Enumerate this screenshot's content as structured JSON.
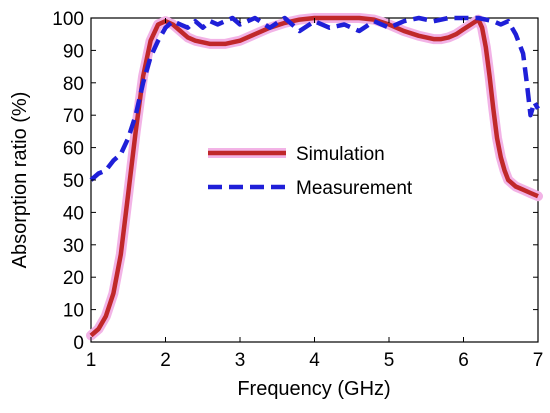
{
  "chart_data": {
    "type": "line",
    "xlabel": "Frequency (GHz)",
    "ylabel": "Absorption ratio (%)",
    "xlim": [
      1,
      7
    ],
    "ylim": [
      0,
      100
    ],
    "xticks": [
      1,
      2,
      3,
      4,
      5,
      6,
      7
    ],
    "yticks": [
      0,
      10,
      20,
      30,
      40,
      50,
      60,
      70,
      80,
      90,
      100
    ],
    "grid": false,
    "legend_position": "center",
    "series": [
      {
        "name": "Simulation",
        "color": "#c0282a",
        "line_style": "solid",
        "x": [
          1.0,
          1.1,
          1.2,
          1.3,
          1.4,
          1.5,
          1.6,
          1.7,
          1.8,
          1.9,
          2.0,
          2.1,
          2.2,
          2.3,
          2.4,
          2.5,
          2.6,
          2.7,
          2.8,
          2.9,
          3.0,
          3.2,
          3.4,
          3.6,
          3.8,
          4.0,
          4.2,
          4.4,
          4.6,
          4.8,
          5.0,
          5.2,
          5.4,
          5.6,
          5.7,
          5.8,
          5.9,
          6.0,
          6.1,
          6.2,
          6.25,
          6.3,
          6.35,
          6.4,
          6.45,
          6.5,
          6.55,
          6.6,
          6.7,
          6.8,
          6.9,
          7.0
        ],
        "y": [
          2,
          4,
          8,
          15,
          27,
          46,
          65,
          82,
          93,
          98,
          99,
          98,
          96,
          94,
          93,
          92.5,
          92,
          92,
          92,
          92.5,
          93,
          95,
          97,
          98.5,
          99.5,
          100,
          100,
          100,
          100,
          99.5,
          98,
          96,
          94.5,
          93.5,
          93.5,
          94,
          95,
          96.5,
          98,
          99.5,
          97,
          91,
          82,
          72,
          63,
          57,
          53,
          50,
          48,
          47,
          46,
          45
        ]
      },
      {
        "name": "Measurement",
        "color": "#1f1fd8",
        "line_style": "dashed",
        "x": [
          1.0,
          1.1,
          1.2,
          1.3,
          1.4,
          1.5,
          1.6,
          1.7,
          1.8,
          1.9,
          2.0,
          2.1,
          2.2,
          2.3,
          2.4,
          2.5,
          2.6,
          2.7,
          2.8,
          2.9,
          3.0,
          3.2,
          3.4,
          3.6,
          3.8,
          4.0,
          4.2,
          4.4,
          4.6,
          4.8,
          5.0,
          5.2,
          5.4,
          5.6,
          5.8,
          6.0,
          6.2,
          6.4,
          6.5,
          6.6,
          6.7,
          6.75,
          6.8,
          6.85,
          6.9,
          6.95,
          7.0
        ],
        "y": [
          50,
          52,
          53,
          56,
          58,
          63,
          70,
          80,
          88,
          93,
          97,
          99,
          98,
          97,
          99,
          97,
          99,
          98,
          99,
          100,
          98,
          100,
          97,
          100,
          96,
          99,
          97,
          98,
          96,
          99,
          97,
          99,
          100,
          99,
          100,
          100,
          100,
          99,
          98,
          99,
          95,
          92,
          89,
          80,
          70,
          74,
          72
        ]
      }
    ]
  }
}
